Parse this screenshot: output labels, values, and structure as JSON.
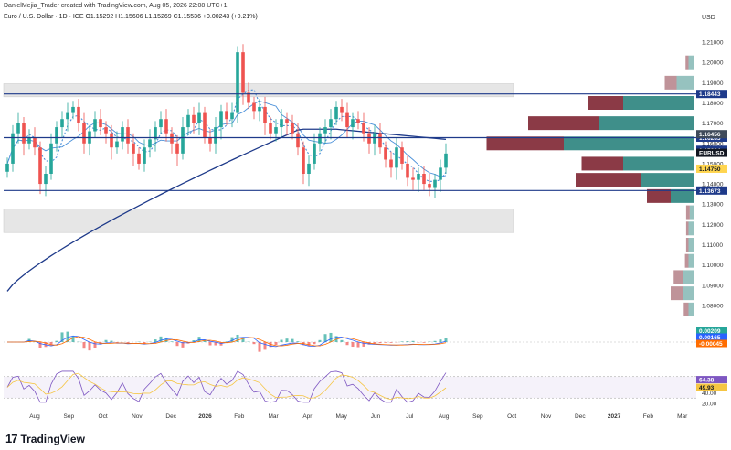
{
  "header": {
    "attribution": "DanielMejia_Trader created with TradingView.com, Aug 05, 2026 22:08 UTC+1",
    "symbol_line": "Euro / U.S. Dollar · 1D · ICE  O1.15292  H1.15606  L1.15269  C1.15536  +0.00243 (+0.21%)"
  },
  "currency": "USD",
  "footer": {
    "logo_text": "TradingView",
    "logo_mark": "17"
  },
  "colors": {
    "up": "#26a69a",
    "down": "#ef5350",
    "ma200": "#1e3a8a",
    "ma50": "#4a90d9",
    "zone": "#e6e6e6",
    "vp_up": "#3f8f8a",
    "vp_down": "#8b3a46",
    "macd": "#2962ff",
    "signal": "#ff6d00",
    "rsi": "#7e57c2",
    "rsi_ma": "#f5c542"
  },
  "chart_data": {
    "type": "candlestick",
    "price_axis": {
      "ylim": [
        1.075,
        1.215
      ],
      "ticks": [
        "1.21000",
        "1.20000",
        "1.19000",
        "1.18000",
        "1.17000",
        "1.16000",
        "1.15000",
        "1.14000",
        "1.13000",
        "1.12000",
        "1.11000",
        "1.10000",
        "1.09000",
        "1.08000"
      ]
    },
    "time_axis": [
      "Aug",
      "Sep",
      "Oct",
      "Nov",
      "Dec",
      "2026",
      "Feb",
      "Mar",
      "Apr",
      "May",
      "Jun",
      "Jul",
      "Aug",
      "Sep",
      "Oct",
      "Nov",
      "Dec",
      "2027",
      "Feb",
      "Mar"
    ],
    "close_series": [
      1.15,
      1.165,
      1.17,
      1.16,
      1.163,
      1.158,
      1.14,
      1.145,
      1.16,
      1.168,
      1.172,
      1.175,
      1.178,
      1.17,
      1.16,
      1.166,
      1.172,
      1.168,
      1.165,
      1.158,
      1.161,
      1.168,
      1.16,
      1.155,
      1.15,
      1.158,
      1.162,
      1.168,
      1.172,
      1.165,
      1.16,
      1.155,
      1.168,
      1.174,
      1.17,
      1.175,
      1.163,
      1.16,
      1.168,
      1.176,
      1.172,
      1.175,
      1.205,
      1.185,
      1.18,
      1.176,
      1.178,
      1.17,
      1.165,
      1.168,
      1.172,
      1.17,
      1.165,
      1.158,
      1.145,
      1.15,
      1.16,
      1.165,
      1.168,
      1.172,
      1.178,
      1.175,
      1.168,
      1.172,
      1.17,
      1.165,
      1.16,
      1.165,
      1.158,
      1.152,
      1.148,
      1.158,
      1.15,
      1.143,
      1.142,
      1.145,
      1.14,
      1.138,
      1.142,
      1.148,
      1.155
    ],
    "horizontal_levels": [
      {
        "value": 1.18443,
        "label": "1.18443"
      },
      {
        "value": 1.16285,
        "label": "1.16285"
      },
      {
        "value": 1.13673,
        "label": "1.13673"
      }
    ],
    "price_labels": [
      {
        "label": "1.16456",
        "value": 1.16456
      },
      {
        "label": "1.15684",
        "value": 1.15684
      },
      {
        "label": "EURUSD",
        "value": 1.15536
      },
      {
        "label": "1.14750",
        "value": 1.1475
      }
    ],
    "zones": [
      {
        "from": 1.183,
        "to": 1.1895
      },
      {
        "from": 1.116,
        "to": 1.1275
      }
    ],
    "volume_profile": [
      {
        "price": 1.2,
        "up": 1,
        "down": 0.5
      },
      {
        "price": 1.19,
        "up": 3,
        "down": 2
      },
      {
        "price": 1.18,
        "up": 12,
        "down": 6
      },
      {
        "price": 1.17,
        "up": 16,
        "down": 12
      },
      {
        "price": 1.16,
        "up": 22,
        "down": 13
      },
      {
        "price": 1.15,
        "up": 12,
        "down": 7
      },
      {
        "price": 1.142,
        "up": 9,
        "down": 11
      },
      {
        "price": 1.134,
        "up": 4,
        "down": 4
      },
      {
        "price": 1.126,
        "up": 0.8,
        "down": 0.6
      },
      {
        "price": 1.118,
        "up": 1,
        "down": 0.4
      },
      {
        "price": 1.11,
        "up": 1,
        "down": 0.4
      },
      {
        "price": 1.102,
        "up": 1,
        "down": 0.6
      },
      {
        "price": 1.094,
        "up": 2,
        "down": 1.5
      },
      {
        "price": 1.086,
        "up": 2,
        "down": 2
      },
      {
        "price": 1.078,
        "up": 1,
        "down": 0.8
      }
    ],
    "macd": {
      "axis_ticks": [
        "0.00000"
      ],
      "labels": [
        {
          "label": "0.00209",
          "value": 0.00209
        },
        {
          "label": "0.00165",
          "value": 0.00165
        },
        {
          "label": "-0.00045",
          "value": -0.00045
        }
      ],
      "ylim": [
        -0.01,
        0.01
      ]
    },
    "rsi": {
      "axis_ticks": [
        "40.00",
        "20.00"
      ],
      "labels": [
        {
          "label": "64.38",
          "value": 64.38
        },
        {
          "label": "49.93",
          "value": 49.93
        }
      ],
      "ylim": [
        15,
        85
      ]
    }
  }
}
